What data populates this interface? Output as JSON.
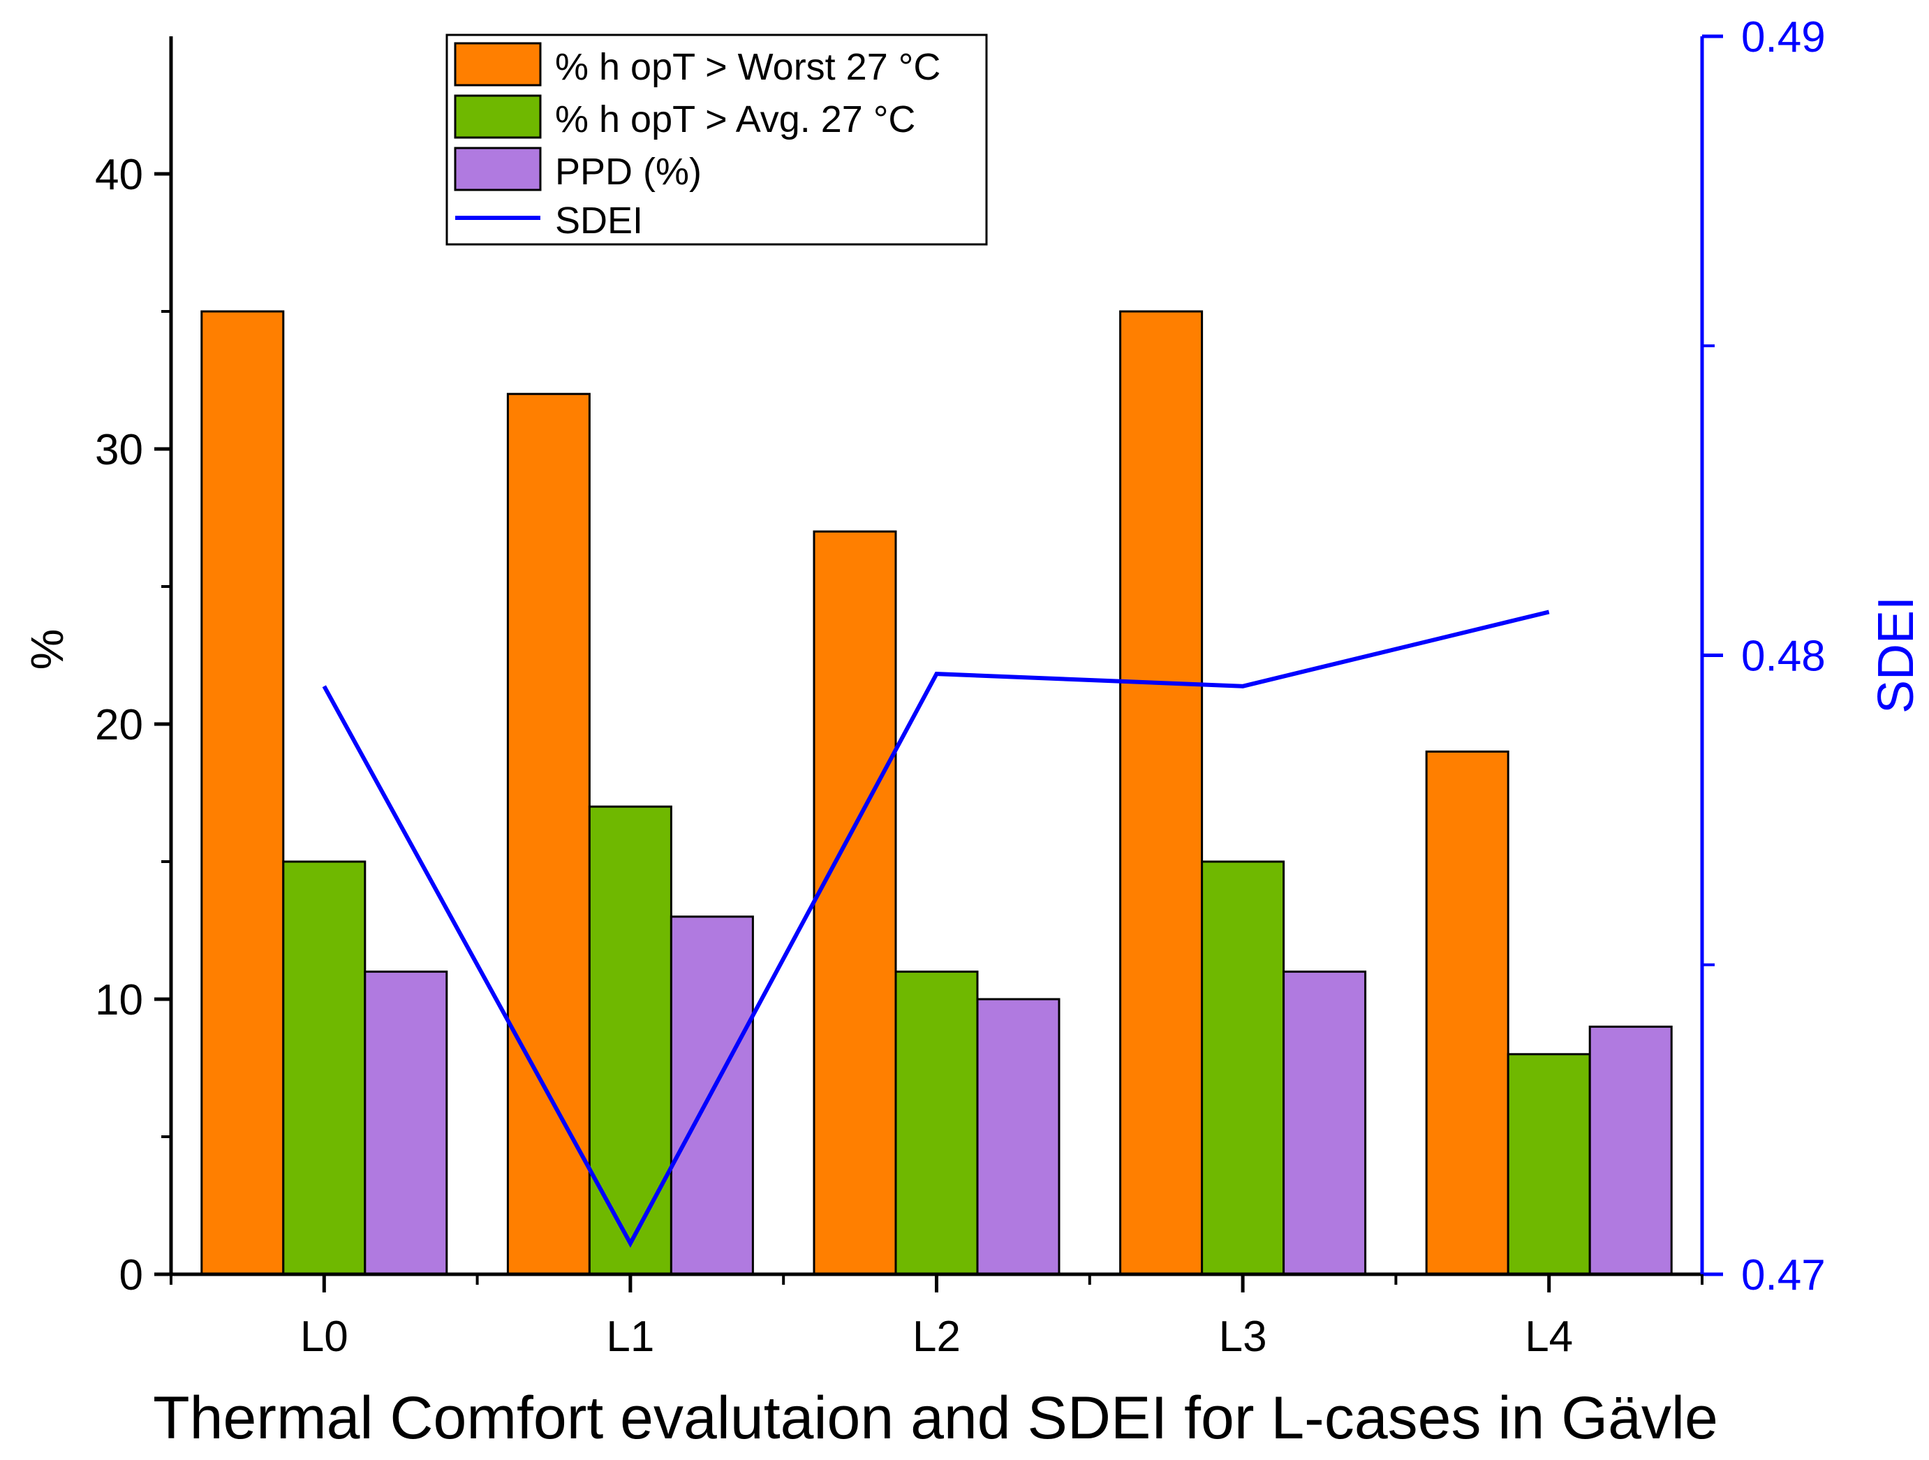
{
  "chart_data": {
    "type": "bar",
    "categories": [
      "L0",
      "L1",
      "L2",
      "L3",
      "L4"
    ],
    "series": [
      {
        "name": "% h opT > Worst 27 °C",
        "values": [
          35,
          32,
          27,
          35,
          19
        ],
        "color": "#ff7f00",
        "axis": "left",
        "type": "bar"
      },
      {
        "name": "% h opT > Avg. 27 °C",
        "values": [
          15,
          17,
          11,
          15,
          8
        ],
        "color": "#6fb800",
        "axis": "left",
        "type": "bar"
      },
      {
        "name": "PPD (%)",
        "values": [
          11,
          13,
          10,
          11,
          9
        ],
        "color": "#b07ae0",
        "axis": "left",
        "type": "bar"
      },
      {
        "name": "SDEI",
        "values": [
          0.4795,
          0.4705,
          0.4797,
          0.4795,
          0.4807
        ],
        "color": "#0000ff",
        "axis": "right",
        "type": "line"
      }
    ],
    "xlabel": "Thermal Comfort evalutaion and SDEI for L-cases in Gävle",
    "ylabel": "%",
    "y2label": "SDEI",
    "ylim": [
      0,
      45
    ],
    "y2lim": [
      0.47,
      0.49
    ],
    "yticks": [
      "0",
      "10",
      "20",
      "30",
      "40"
    ],
    "y2ticks": [
      "0.47",
      "0.48",
      "0.49"
    ],
    "legend_position": "top-center",
    "grid": false
  }
}
